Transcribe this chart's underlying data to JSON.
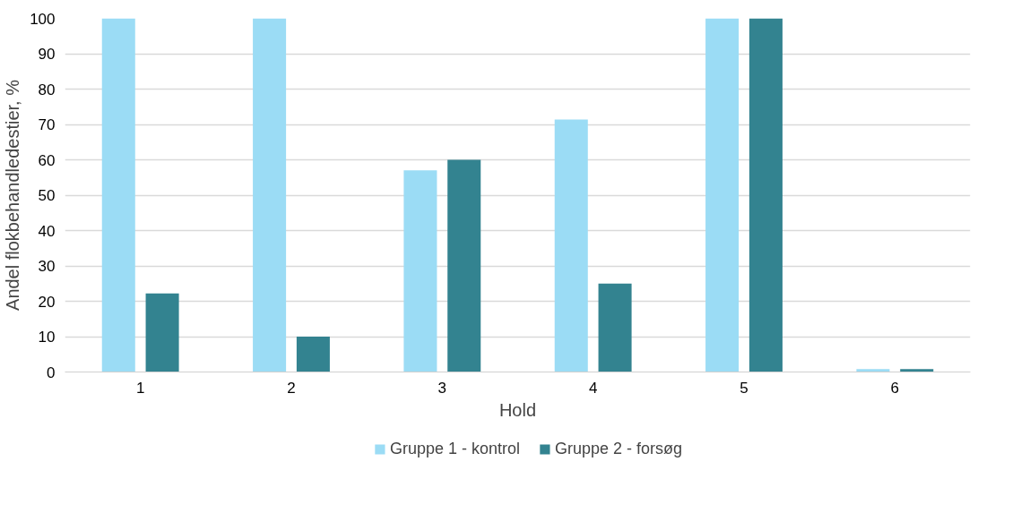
{
  "chart_data": {
    "type": "bar",
    "xlabel": "Hold",
    "ylabel": "Andel flokbehandledestier, %",
    "categories": [
      "1",
      "2",
      "3",
      "4",
      "5",
      "6"
    ],
    "series": [
      {
        "name": "Gruppe 1 - kontrol",
        "color": "#9bdcf5",
        "values": [
          100,
          100,
          57,
          71.4,
          100,
          0.8
        ]
      },
      {
        "name": "Gruppe 2 - forsøg",
        "color": "#338390",
        "values": [
          22.2,
          10,
          60,
          25,
          100,
          0.8
        ]
      }
    ],
    "ylim": [
      0,
      100
    ],
    "yticks": [
      0,
      10,
      20,
      30,
      40,
      50,
      60,
      70,
      80,
      90,
      100
    ],
    "grid": "y",
    "legend": "bottom"
  }
}
